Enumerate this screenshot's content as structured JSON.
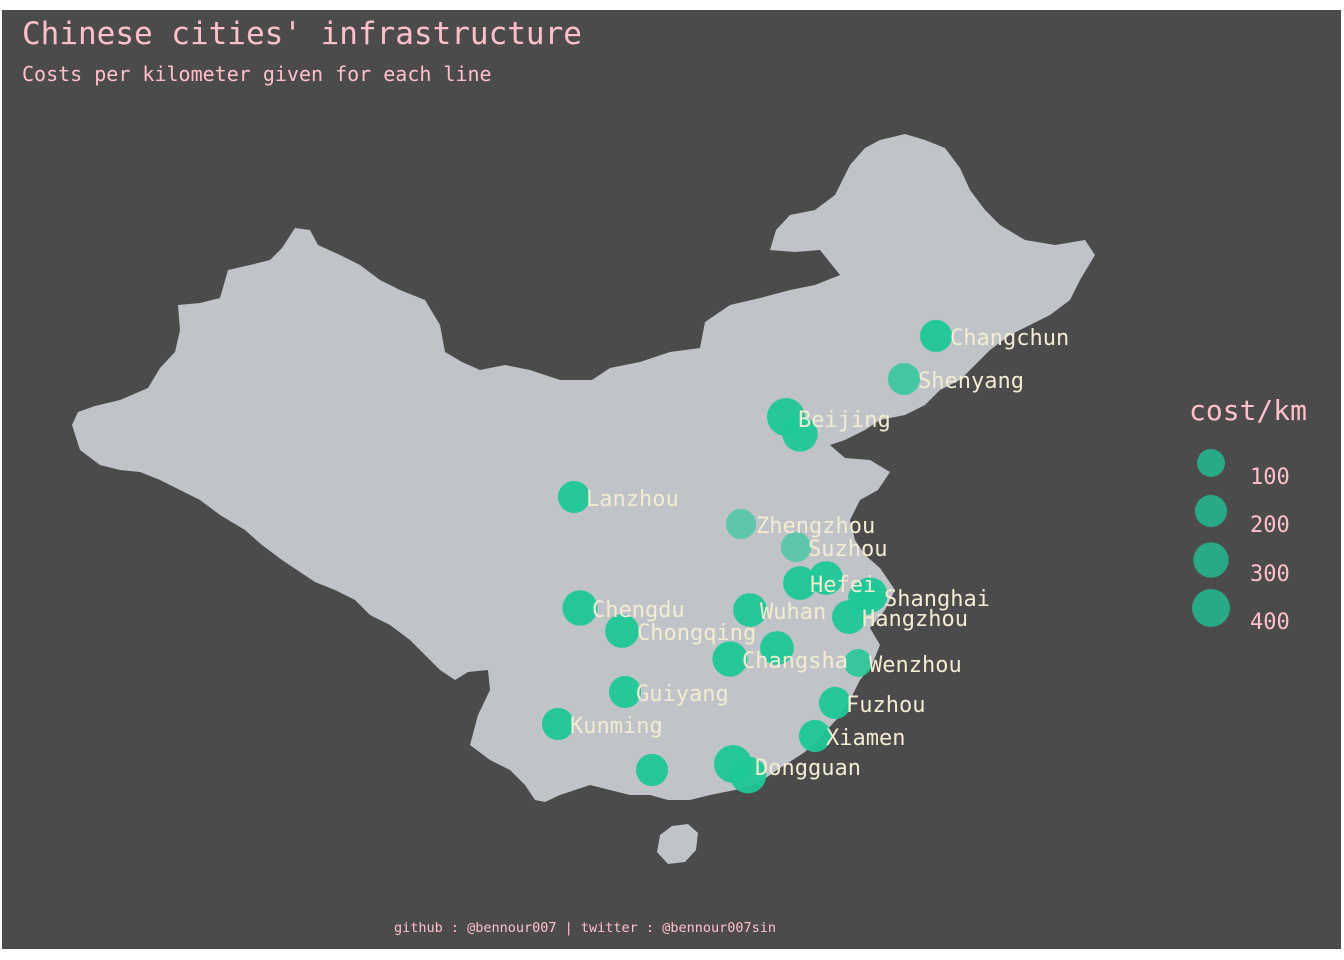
{
  "title": "Chinese cities' infrastructure",
  "subtitle": "Costs per kilometer given for each line",
  "caption": "github : @bennour007 | twitter : @bennour007sin",
  "colors": {
    "panel_background": "#4b4b4b",
    "land": "#c0c4c8",
    "point": "#1ec898",
    "text_pink": "#ffc0cb",
    "label_cream": "#f3ecd2"
  },
  "legend": {
    "title": "cost/km",
    "labels": [
      "100",
      "200",
      "300",
      "400"
    ],
    "values": [
      100,
      200,
      300,
      400
    ]
  },
  "cities": [
    {
      "name": "Changchun",
      "cost_km": 200,
      "opacity": 0.95
    },
    {
      "name": "Shenyang",
      "cost_km": 200,
      "opacity": 0.75
    },
    {
      "name": "Beijing",
      "cost_km": 400,
      "opacity": 0.95
    },
    {
      "name": "Lanzhou",
      "cost_km": 200,
      "opacity": 0.95
    },
    {
      "name": "Zhengzhou",
      "cost_km": 150,
      "opacity": 0.6
    },
    {
      "name": "Suzhou",
      "cost_km": 150,
      "opacity": 0.6
    },
    {
      "name": "Hefei",
      "cost_km": 250,
      "opacity": 0.95
    },
    {
      "name": "Shanghai",
      "cost_km": 300,
      "opacity": 0.95
    },
    {
      "name": "Chengdu",
      "cost_km": 300,
      "opacity": 0.95
    },
    {
      "name": "Wuhan",
      "cost_km": 250,
      "opacity": 0.95
    },
    {
      "name": "Hangzhou",
      "cost_km": 250,
      "opacity": 0.95
    },
    {
      "name": "Chongqing",
      "cost_km": 250,
      "opacity": 0.95
    },
    {
      "name": "Changsha",
      "cost_km": 250,
      "opacity": 0.95
    },
    {
      "name": "Wenzhou",
      "cost_km": 100,
      "opacity": 0.85
    },
    {
      "name": "Guiyang",
      "cost_km": 200,
      "opacity": 0.95
    },
    {
      "name": "Kunming",
      "cost_km": 200,
      "opacity": 0.95
    },
    {
      "name": "Fuzhou",
      "cost_km": 200,
      "opacity": 0.95
    },
    {
      "name": "Xiamen",
      "cost_km": 200,
      "opacity": 0.95
    },
    {
      "name": "Dongguan",
      "cost_km": 400,
      "opacity": 0.95
    }
  ],
  "unlabeled_points": [
    {
      "cost_km": 300,
      "opacity": 0.95
    },
    {
      "cost_km": 200,
      "opacity": 0.95
    },
    {
      "cost_km": 250,
      "opacity": 0.95
    },
    {
      "cost_km": 300,
      "opacity": 0.95
    },
    {
      "cost_km": 250,
      "opacity": 0.95
    },
    {
      "cost_km": 350,
      "opacity": 0.95
    }
  ]
}
